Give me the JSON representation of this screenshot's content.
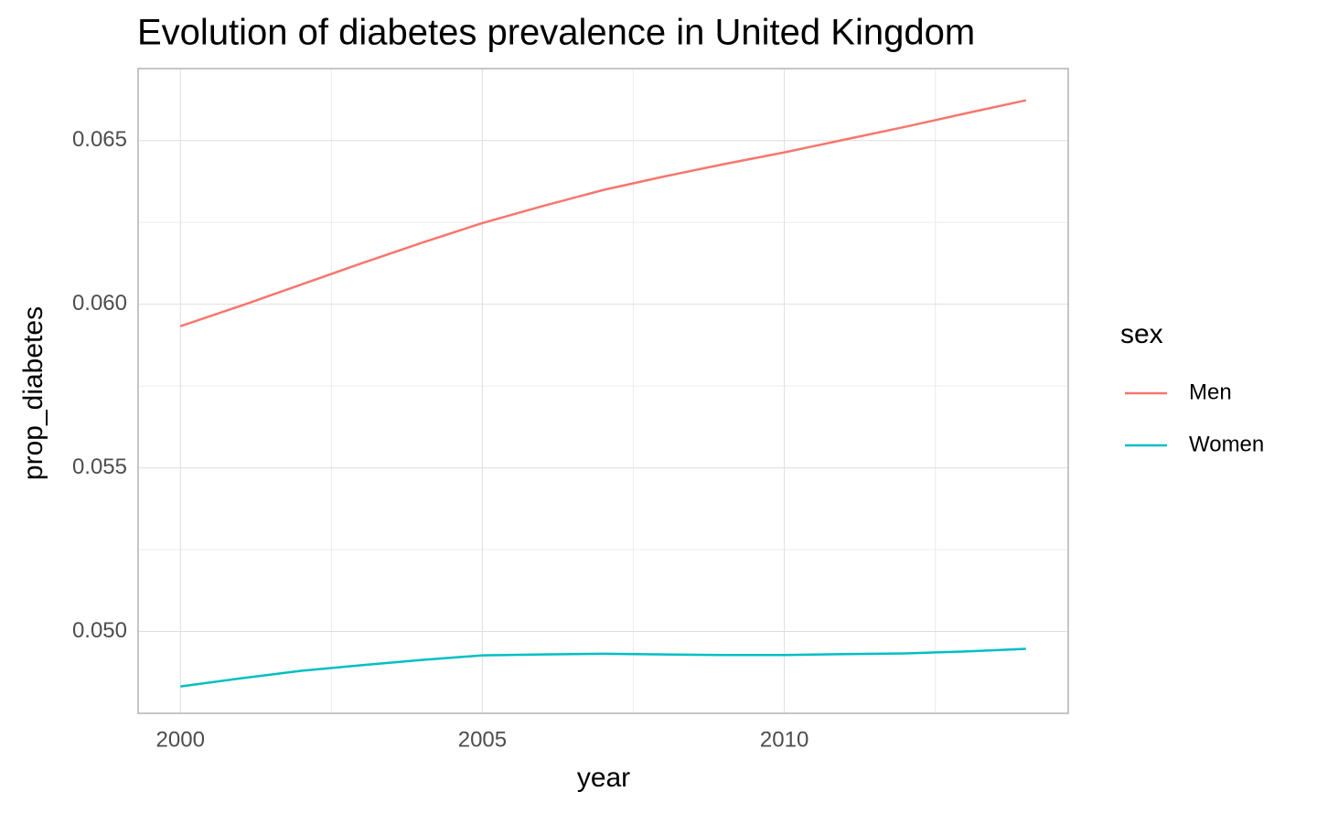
{
  "chart_data": {
    "type": "line",
    "title": "Evolution of diabetes prevalence in United Kingdom",
    "x_label": "year",
    "y_label": "prop_diabetes",
    "legend_title": "sex",
    "legend_position": "right",
    "x": [
      2000,
      2001,
      2002,
      2003,
      2004,
      2005,
      2006,
      2007,
      2008,
      2009,
      2010,
      2011,
      2012,
      2013,
      2014
    ],
    "series": [
      {
        "name": "Men",
        "color": "#F8766D",
        "values": [
          0.05933,
          0.05995,
          0.0606,
          0.06125,
          0.06188,
          0.06248,
          0.063,
          0.06349,
          0.0639,
          0.06428,
          0.06464,
          0.06503,
          0.06542,
          0.06583,
          0.06623
        ]
      },
      {
        "name": "Women",
        "color": "#00BFC4",
        "values": [
          0.04832,
          0.04857,
          0.0488,
          0.04897,
          0.04913,
          0.04927,
          0.0493,
          0.04932,
          0.0493,
          0.04928,
          0.04928,
          0.04931,
          0.04933,
          0.04939,
          0.04947
        ]
      }
    ],
    "xlim": [
      1999.3,
      2014.7
    ],
    "xticks": [
      2000,
      2005,
      2010
    ],
    "ylim": [
      0.0475,
      0.0672
    ],
    "yticks": [
      {
        "value": 0.05,
        "label": "0.050"
      },
      0.055,
      {
        "value": 0.06,
        "label": "0.060"
      },
      0.065
    ],
    "grid": true
  }
}
